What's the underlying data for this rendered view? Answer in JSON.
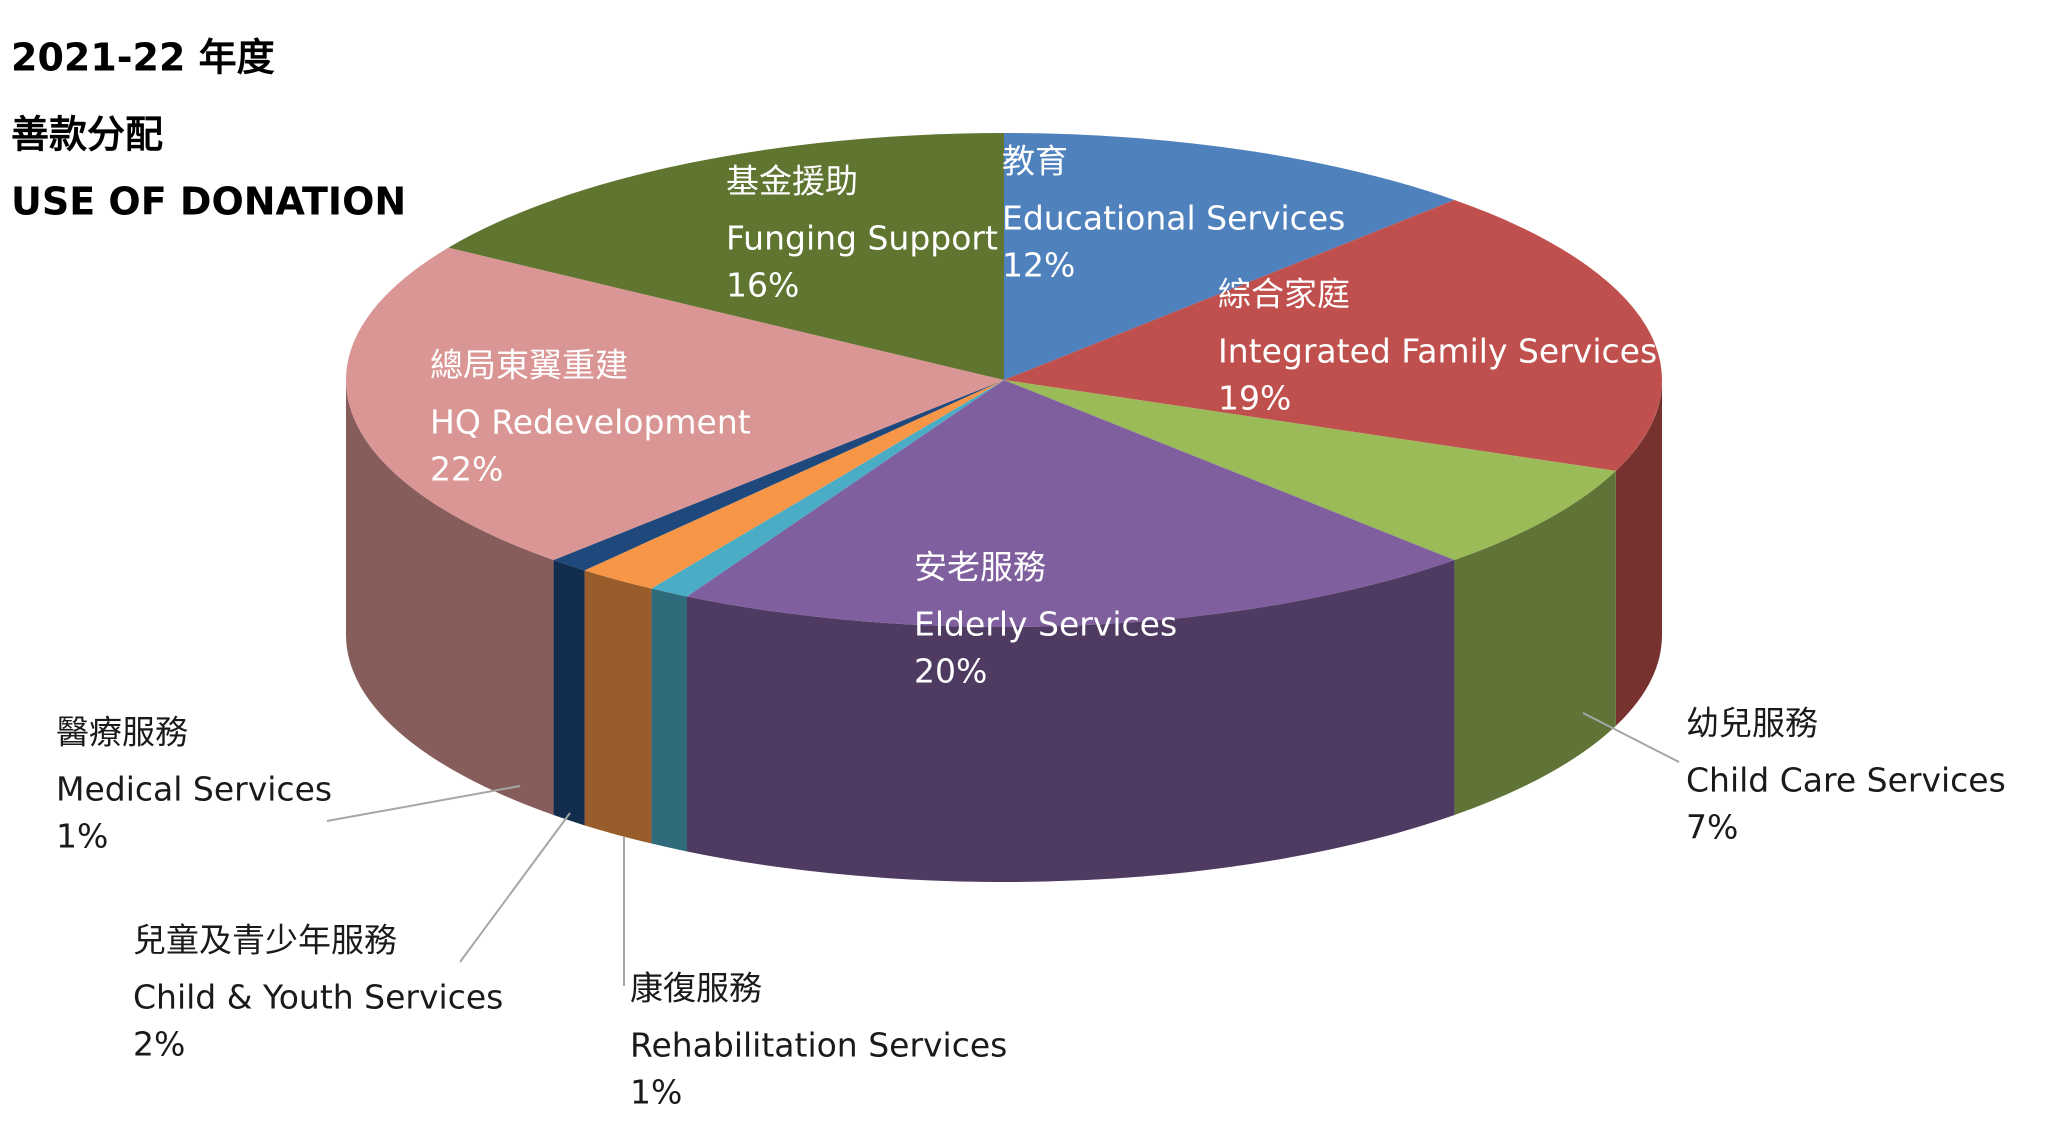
{
  "chart_data": {
    "type": "pie",
    "title_lines": [
      "2021-22 年度",
      "善款分配",
      "USE OF DONATION"
    ],
    "labels_zh": [
      "教育",
      "綜合家庭",
      "幼兒服務",
      "安老服務",
      "康復服務",
      "兒童及青少年服務",
      "醫療服務",
      "總局東翼重建",
      "基金援助"
    ],
    "categories": [
      "Educational Services",
      "Integrated Family Services",
      "Child Care Services",
      "Elderly Services",
      "Rehabilitation Services",
      "Child & Youth Services",
      "Medical Services",
      "HQ Redevelopment",
      "Funging Support"
    ],
    "values": [
      12,
      19,
      7,
      20,
      1,
      2,
      1,
      22,
      16
    ],
    "value_labels": [
      "12%",
      "19%",
      "7%",
      "20%",
      "1%",
      "2%",
      "1%",
      "22%",
      "16%"
    ],
    "colors": [
      "#4f81bd",
      "#c0504d",
      "#9bbb59",
      "#7f5f9e",
      "#4bacc6",
      "#f79646",
      "#1f497d",
      "#d99694",
      "#5f7530"
    ]
  }
}
